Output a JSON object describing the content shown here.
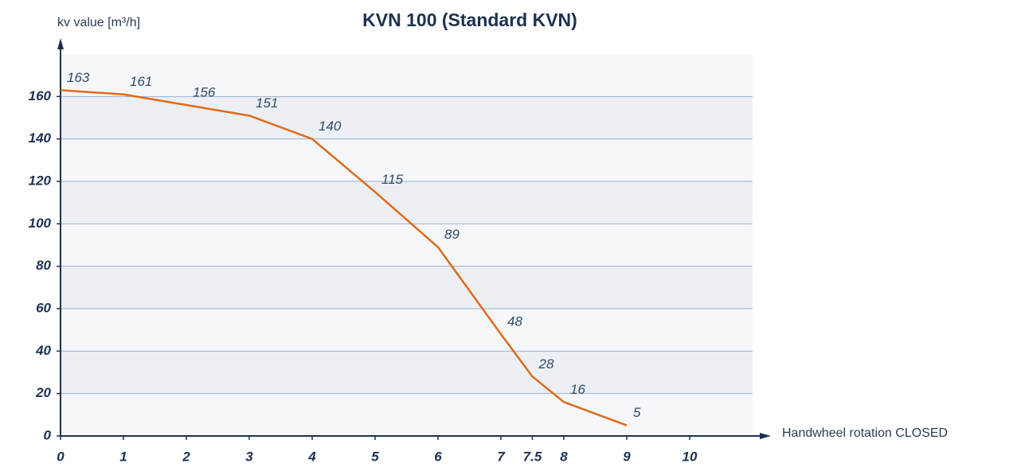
{
  "chart_data": {
    "type": "line",
    "title": "KVN 100 (Standard KVN)",
    "y_label": "kv value [m³/h]",
    "x_label": "Handwheel rotation CLOSED",
    "x": [
      0,
      1,
      2,
      3,
      4,
      5,
      6,
      7,
      7.5,
      8,
      9
    ],
    "values": [
      163,
      161,
      156,
      151,
      140,
      115,
      89,
      48,
      28,
      16,
      5
    ],
    "color": "#e2691a",
    "xlim": [
      0,
      11
    ],
    "ylim": [
      0,
      180
    ],
    "xticks": [
      0,
      1,
      2,
      3,
      4,
      5,
      6,
      7,
      7.5,
      8,
      9,
      10
    ],
    "yticks": [
      0,
      20,
      40,
      60,
      80,
      100,
      120,
      140,
      160
    ],
    "grid": true
  }
}
